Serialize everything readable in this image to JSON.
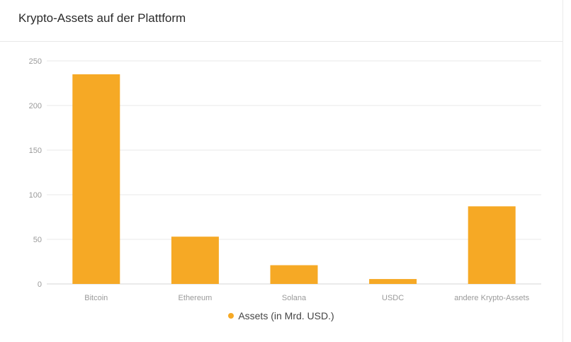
{
  "header": {
    "title": "Krypto-Assets auf der Plattform"
  },
  "colors": {
    "bar": "#F6A925",
    "grid": "#e9e9e9",
    "tick_text": "#9a9a9a",
    "baseline": "#d6d6d6"
  },
  "chart_data": {
    "type": "bar",
    "title": "Krypto-Assets auf der Plattform",
    "xlabel": "",
    "ylabel": "",
    "categories": [
      "Bitcoin",
      "Ethereum",
      "Solana",
      "USDC",
      "andere Krypto-Assets"
    ],
    "series": [
      {
        "name": "Assets (in Mrd. USD.)",
        "values": [
          235,
          53,
          21,
          5.5,
          87
        ]
      }
    ],
    "ylim": [
      0,
      250
    ],
    "yticks": [
      "0",
      "50",
      "100",
      "150",
      "200",
      "250"
    ],
    "grid": true,
    "legend": "bottom-center"
  }
}
